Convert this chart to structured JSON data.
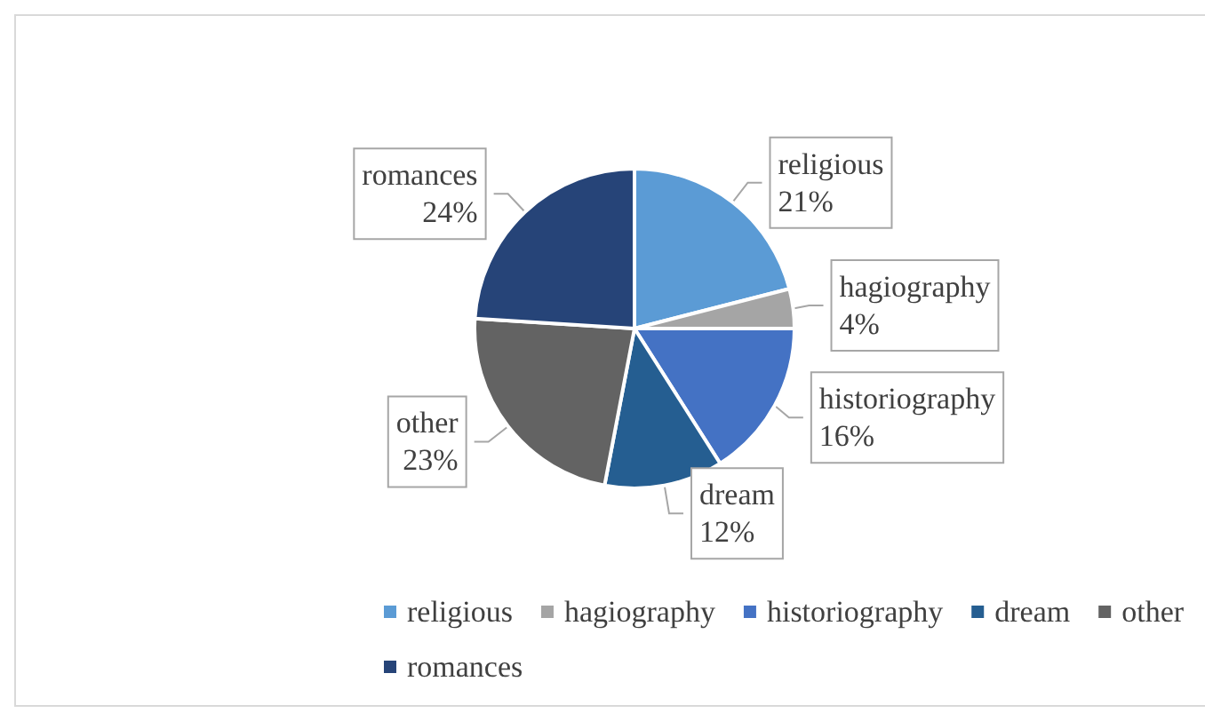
{
  "chart_data": {
    "type": "pie",
    "categories": [
      "religious",
      "hagiography",
      "historiography",
      "dream",
      "other",
      "romances"
    ],
    "values": [
      21,
      4,
      16,
      12,
      23,
      24
    ],
    "colors": [
      "#5b9bd5",
      "#a5a5a5",
      "#4472c4",
      "#255e91",
      "#636363",
      "#264478"
    ],
    "value_labels": [
      "21%",
      "4%",
      "16%",
      "12%",
      "23%",
      "24%"
    ],
    "legend": "bottom"
  }
}
